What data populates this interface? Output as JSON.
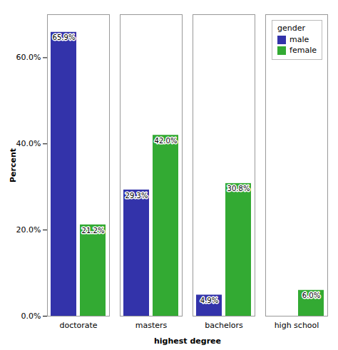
{
  "chart_data": {
    "type": "bar",
    "categories": [
      "doctorate",
      "masters",
      "bachelors",
      "high school"
    ],
    "series": [
      {
        "name": "male",
        "color": "#3333AA",
        "values": [
          65.9,
          29.3,
          4.9,
          0.0
        ],
        "value_labels": [
          "65.9%",
          "29.3%",
          "4.9%",
          null
        ]
      },
      {
        "name": "female",
        "color": "#33AA33",
        "values": [
          21.2,
          42.0,
          30.8,
          6.0
        ],
        "value_labels": [
          "21.2%",
          "42.0%",
          "30.8%",
          "6.0%"
        ]
      }
    ],
    "xlabel": "highest degree",
    "ylabel": "Percent",
    "ylim": [
      0,
      70
    ],
    "yticks": [
      {
        "value": 0,
        "label": "0.0%"
      },
      {
        "value": 20,
        "label": "20.0%"
      },
      {
        "value": 40,
        "label": "40.0%"
      },
      {
        "value": 60,
        "label": "60.0%"
      }
    ],
    "grid": false,
    "legend": "upper right",
    "legend_title": "gender",
    "data_labels": true
  }
}
